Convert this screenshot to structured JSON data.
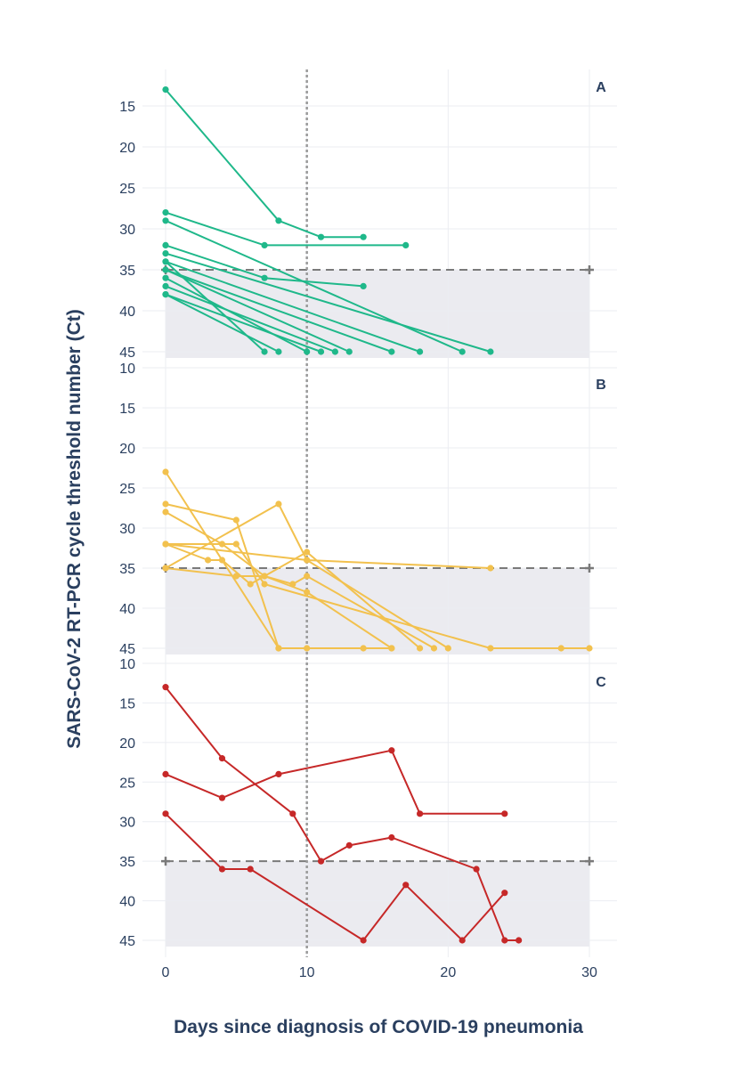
{
  "chart_data": {
    "type": "line",
    "ylabel": "SARS-CoV-2 RT-PCR cycle threshold number (Ct)",
    "xlabel": "Days since diagnosis of COVID-19 pneumonia",
    "x_ticks": [
      0,
      10,
      20,
      30
    ],
    "xlim": [
      -1.5,
      32
    ],
    "y_reversed": true,
    "ylim": [
      10,
      46
    ],
    "threshold_ct": 35,
    "shaded_range": [
      35,
      46
    ],
    "reference_day": 10,
    "panels": [
      {
        "label": "A",
        "color": "#1fb88a",
        "y_ticks": [
          15,
          20,
          25,
          30,
          35,
          40,
          45
        ],
        "series": [
          {
            "x": [
              0,
              8,
              11,
              14
            ],
            "y": [
              13,
              29,
              31,
              31
            ]
          },
          {
            "x": [
              0,
              7,
              17
            ],
            "y": [
              28,
              32,
              32
            ]
          },
          {
            "x": [
              0,
              7,
              14
            ],
            "y": [
              32,
              36,
              37
            ]
          },
          {
            "x": [
              0,
              21
            ],
            "y": [
              29,
              45
            ]
          },
          {
            "x": [
              0,
              23
            ],
            "y": [
              33,
              45
            ]
          },
          {
            "x": [
              0,
              18
            ],
            "y": [
              34,
              45
            ]
          },
          {
            "x": [
              0,
              16
            ],
            "y": [
              35,
              45
            ]
          },
          {
            "x": [
              0,
              13
            ],
            "y": [
              35,
              45
            ]
          },
          {
            "x": [
              0,
              12
            ],
            "y": [
              37,
              45
            ]
          },
          {
            "x": [
              0,
              11
            ],
            "y": [
              38,
              45
            ]
          },
          {
            "x": [
              0,
              8
            ],
            "y": [
              38,
              45
            ]
          },
          {
            "x": [
              0,
              10
            ],
            "y": [
              36,
              45
            ]
          },
          {
            "x": [
              0,
              7
            ],
            "y": [
              34,
              45
            ]
          }
        ]
      },
      {
        "label": "B",
        "color": "#f2c14e",
        "y_ticks": [
          10,
          15,
          20,
          25,
          30,
          35,
          40,
          45
        ],
        "series": [
          {
            "x": [
              0,
              8,
              14
            ],
            "y": [
              23,
              45,
              45
            ]
          },
          {
            "x": [
              0,
              5,
              8,
              10,
              16
            ],
            "y": [
              27,
              29,
              45,
              45,
              45
            ]
          },
          {
            "x": [
              0,
              4,
              7,
              9,
              10,
              19
            ],
            "y": [
              28,
              32,
              36,
              37,
              36,
              45
            ]
          },
          {
            "x": [
              0,
              5,
              7,
              23,
              28,
              30
            ],
            "y": [
              32,
              32,
              37,
              45,
              45,
              45
            ]
          },
          {
            "x": [
              0,
              3,
              4,
              6,
              10,
              18
            ],
            "y": [
              32,
              34,
              34,
              37,
              33,
              45
            ]
          },
          {
            "x": [
              0,
              8,
              10,
              20
            ],
            "y": [
              35,
              27,
              34,
              45
            ]
          },
          {
            "x": [
              0,
              10,
              23
            ],
            "y": [
              32,
              34,
              35
            ]
          },
          {
            "x": [
              0,
              5,
              7,
              10,
              16
            ],
            "y": [
              35,
              36,
              36,
              38,
              45
            ]
          }
        ]
      },
      {
        "label": "C",
        "color": "#c62828",
        "y_ticks": [
          10,
          15,
          20,
          25,
          30,
          35,
          40,
          45
        ],
        "series": [
          {
            "x": [
              0,
              4,
              9,
              11,
              13,
              16,
              22,
              24,
              25
            ],
            "y": [
              13,
              22,
              29,
              35,
              33,
              32,
              36,
              45,
              45
            ]
          },
          {
            "x": [
              0,
              4,
              8,
              16,
              18,
              24
            ],
            "y": [
              24,
              27,
              24,
              21,
              29,
              29
            ]
          },
          {
            "x": [
              0,
              4,
              6,
              14,
              17,
              21,
              24
            ],
            "y": [
              29,
              36,
              36,
              45,
              38,
              45,
              39
            ]
          }
        ]
      }
    ]
  }
}
